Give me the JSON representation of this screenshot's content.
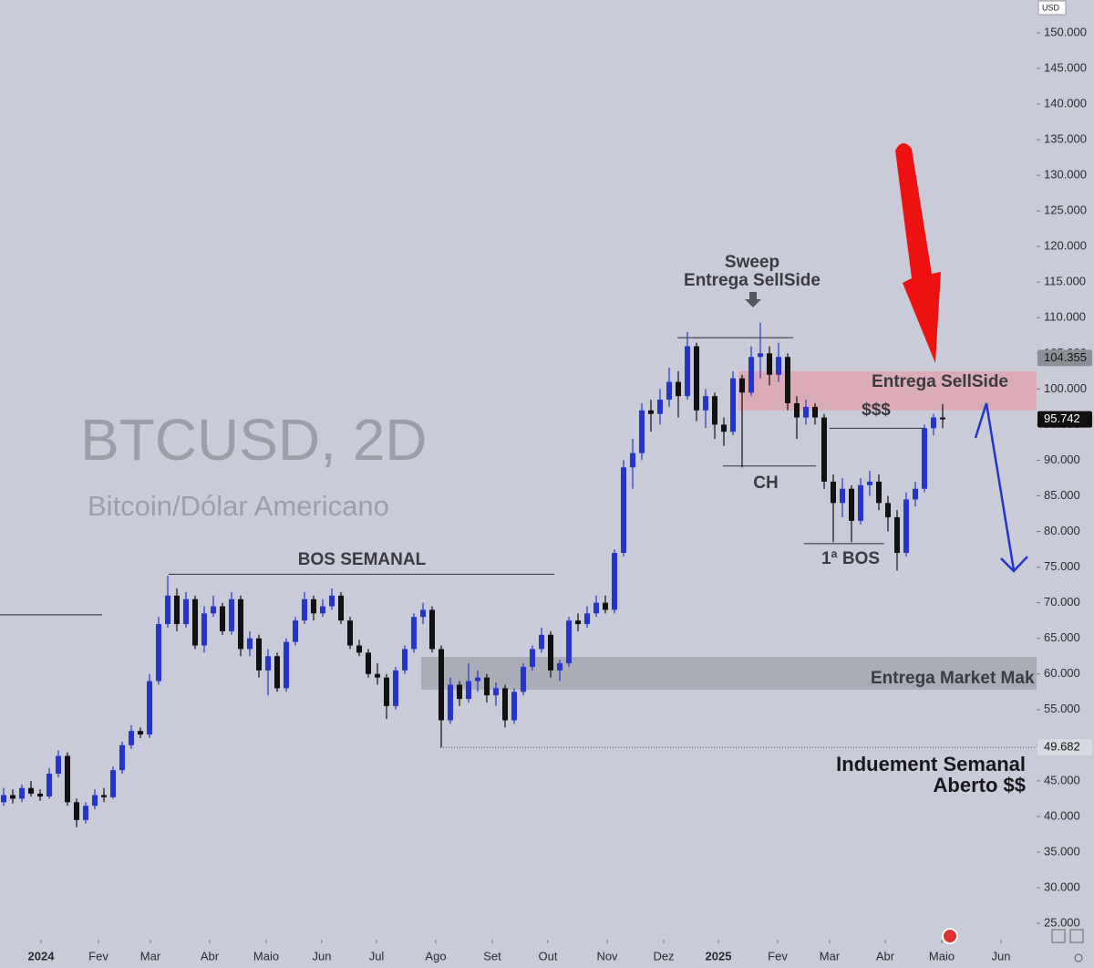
{
  "chart_data": {
    "type": "candlestick",
    "title": "BTCUSD, 2D",
    "subtitle": "Bitcoin/Dólar Americano",
    "currency": "USD",
    "up_color": "#2435c8",
    "down_color": "#111111",
    "xlim": [
      -0.4,
      113.3
    ],
    "ylim": [
      22700,
      154600
    ],
    "xticks": [
      {
        "value": 4.1,
        "label": "2024"
      },
      {
        "value": 10.4,
        "label": "Fev"
      },
      {
        "value": 16.1,
        "label": "Mar"
      },
      {
        "value": 22.6,
        "label": "Abr"
      },
      {
        "value": 28.8,
        "label": "Maio"
      },
      {
        "value": 34.9,
        "label": "Jun"
      },
      {
        "value": 40.9,
        "label": "Jul"
      },
      {
        "value": 47.4,
        "label": "Ago"
      },
      {
        "value": 53.6,
        "label": "Set"
      },
      {
        "value": 59.7,
        "label": "Out"
      },
      {
        "value": 66.2,
        "label": "Nov"
      },
      {
        "value": 72.4,
        "label": "Dez"
      },
      {
        "value": 78.4,
        "label": "2025"
      },
      {
        "value": 84.9,
        "label": "Fev"
      },
      {
        "value": 90.6,
        "label": "Mar"
      },
      {
        "value": 96.7,
        "label": "Abr"
      },
      {
        "value": 102.9,
        "label": "Maio"
      },
      {
        "value": 109.4,
        "label": "Jun"
      }
    ],
    "yticks": [
      {
        "value": 25000,
        "label": "25.000"
      },
      {
        "value": 30000,
        "label": "30.000"
      },
      {
        "value": 35000,
        "label": "35.000"
      },
      {
        "value": 40000,
        "label": "40.000"
      },
      {
        "value": 45000,
        "label": "45.000"
      },
      {
        "value": 50000,
        "label": "50.000"
      },
      {
        "value": 55000,
        "label": "55.000"
      },
      {
        "value": 60000,
        "label": "60.000"
      },
      {
        "value": 65000,
        "label": "65.000"
      },
      {
        "value": 70000,
        "label": "70.000"
      },
      {
        "value": 75000,
        "label": "75.000"
      },
      {
        "value": 80000,
        "label": "80.000"
      },
      {
        "value": 85000,
        "label": "85.000"
      },
      {
        "value": 90000,
        "label": "90.000"
      },
      {
        "value": 95000,
        "label": "95.000"
      },
      {
        "value": 100000,
        "label": "100.000"
      },
      {
        "value": 105000,
        "label": "105.000"
      },
      {
        "value": 110000,
        "label": "110.000"
      },
      {
        "value": 115000,
        "label": "115.000"
      },
      {
        "value": 120000,
        "label": "120.000"
      },
      {
        "value": 125000,
        "label": "125.000"
      },
      {
        "value": 130000,
        "label": "130.000"
      },
      {
        "value": 135000,
        "label": "135.000"
      },
      {
        "value": 140000,
        "label": "140.000"
      },
      {
        "value": 145000,
        "label": "145.000"
      },
      {
        "value": 150000,
        "label": "150.000"
      }
    ],
    "candles": [
      [
        42000,
        44000,
        41500,
        43000
      ],
      [
        43000,
        43800,
        41800,
        42500
      ],
      [
        42500,
        44500,
        42000,
        44000
      ],
      [
        44000,
        45000,
        42800,
        43200
      ],
      [
        43200,
        43800,
        42200,
        42800
      ],
      [
        42800,
        46800,
        42500,
        46000
      ],
      [
        46000,
        49300,
        45500,
        48500
      ],
      [
        48500,
        49000,
        41500,
        42000
      ],
      [
        42000,
        42500,
        38500,
        39500
      ],
      [
        39500,
        42000,
        39000,
        41500
      ],
      [
        41500,
        43800,
        41000,
        43000
      ],
      [
        43000,
        44000,
        42000,
        42700
      ],
      [
        42700,
        47000,
        42500,
        46500
      ],
      [
        46500,
        50500,
        46000,
        50000
      ],
      [
        50000,
        52800,
        49500,
        52000
      ],
      [
        52000,
        52500,
        51000,
        51500
      ],
      [
        51500,
        60000,
        51000,
        59000
      ],
      [
        59000,
        68000,
        58500,
        67000
      ],
      [
        67000,
        73800,
        66500,
        71000
      ],
      [
        71000,
        72000,
        66000,
        67000
      ],
      [
        67000,
        71500,
        66500,
        70500
      ],
      [
        70500,
        71000,
        63500,
        64000
      ],
      [
        64000,
        69500,
        63000,
        68500
      ],
      [
        68500,
        71000,
        68000,
        69500
      ],
      [
        69500,
        70000,
        65500,
        66000
      ],
      [
        66000,
        71500,
        65500,
        70500
      ],
      [
        70500,
        71000,
        62500,
        63500
      ],
      [
        63500,
        66000,
        62500,
        65000
      ],
      [
        65000,
        65500,
        59500,
        60500
      ],
      [
        60500,
        63500,
        57000,
        62500
      ],
      [
        62500,
        63000,
        57500,
        58000
      ],
      [
        58000,
        65000,
        57500,
        64500
      ],
      [
        64500,
        68000,
        64000,
        67500
      ],
      [
        67500,
        71500,
        67000,
        70500
      ],
      [
        70500,
        71000,
        67500,
        68500
      ],
      [
        68500,
        70500,
        68000,
        69500
      ],
      [
        69500,
        72000,
        69000,
        71000
      ],
      [
        71000,
        71500,
        67000,
        67500
      ],
      [
        67500,
        68000,
        63500,
        64000
      ],
      [
        64000,
        64800,
        62500,
        63000
      ],
      [
        63000,
        63500,
        59500,
        60000
      ],
      [
        60000,
        61500,
        58500,
        59500
      ],
      [
        59500,
        60000,
        53700,
        55500
      ],
      [
        55500,
        61000,
        55000,
        60500
      ],
      [
        60500,
        64000,
        60000,
        63500
      ],
      [
        63500,
        68500,
        63000,
        68000
      ],
      [
        68000,
        70000,
        67000,
        69000
      ],
      [
        69000,
        69500,
        63000,
        63500
      ],
      [
        63500,
        64000,
        49682,
        53500
      ],
      [
        53500,
        59500,
        53000,
        58500
      ],
      [
        58500,
        59000,
        55500,
        56500
      ],
      [
        56500,
        61500,
        56000,
        59000
      ],
      [
        59000,
        60500,
        57500,
        59500
      ],
      [
        59500,
        60000,
        56000,
        57000
      ],
      [
        57000,
        58800,
        55500,
        58000
      ],
      [
        58000,
        58500,
        52500,
        53500
      ],
      [
        53500,
        58000,
        53000,
        57500
      ],
      [
        57500,
        61500,
        57000,
        61000
      ],
      [
        61000,
        64000,
        60500,
        63500
      ],
      [
        63500,
        66500,
        63000,
        65500
      ],
      [
        65500,
        66000,
        59500,
        60500
      ],
      [
        60500,
        62000,
        59000,
        61500
      ],
      [
        61500,
        68000,
        61000,
        67500
      ],
      [
        67500,
        68500,
        66000,
        67000
      ],
      [
        67000,
        69500,
        66500,
        68500
      ],
      [
        68500,
        71000,
        68000,
        70000
      ],
      [
        70000,
        71000,
        68500,
        69000
      ],
      [
        69000,
        77500,
        68500,
        77000
      ],
      [
        77000,
        90000,
        76500,
        89000
      ],
      [
        89000,
        93000,
        86000,
        91000
      ],
      [
        91000,
        98000,
        90000,
        97000
      ],
      [
        97000,
        98500,
        94000,
        96500
      ],
      [
        96500,
        100000,
        95000,
        98500
      ],
      [
        98500,
        103000,
        97500,
        101000
      ],
      [
        101000,
        102500,
        96000,
        99000
      ],
      [
        99000,
        108000,
        98500,
        106000
      ],
      [
        106000,
        106500,
        95500,
        97000
      ],
      [
        97000,
        100000,
        94500,
        99000
      ],
      [
        99000,
        99500,
        93000,
        95000
      ],
      [
        95000,
        96000,
        92000,
        94000
      ],
      [
        94000,
        102500,
        93500,
        101500
      ],
      [
        101500,
        102000,
        89000,
        99500
      ],
      [
        99500,
        106000,
        99000,
        104500
      ],
      [
        104500,
        109300,
        101500,
        105000
      ],
      [
        105000,
        106000,
        100500,
        102000
      ],
      [
        102000,
        106500,
        101000,
        104500
      ],
      [
        104500,
        105000,
        97000,
        98000
      ],
      [
        98000,
        99000,
        93000,
        96000
      ],
      [
        96000,
        98500,
        95000,
        97500
      ],
      [
        97500,
        98000,
        95000,
        96000
      ],
      [
        96000,
        96500,
        86000,
        87000
      ],
      [
        87000,
        88000,
        78500,
        84000
      ],
      [
        84000,
        87500,
        82000,
        86000
      ],
      [
        86000,
        86500,
        78500,
        81500
      ],
      [
        81500,
        87500,
        81000,
        86500
      ],
      [
        86500,
        88500,
        85000,
        87000
      ],
      [
        87000,
        88000,
        83000,
        84000
      ],
      [
        84000,
        85000,
        80000,
        82000
      ],
      [
        82000,
        83000,
        74500,
        77000
      ],
      [
        77000,
        85500,
        76500,
        84500
      ],
      [
        84500,
        87000,
        83500,
        86000
      ],
      [
        86000,
        95000,
        85500,
        94500
      ],
      [
        94500,
        96500,
        93500,
        96000
      ],
      [
        96000,
        97900,
        94500,
        95742
      ]
    ],
    "levels": [
      {
        "value": 74000,
        "from": 18.1,
        "to": 60.4
      },
      {
        "value": 68300,
        "from": -0.4,
        "to": 10.8
      },
      {
        "value": 107200,
        "from": 73.9,
        "to": 86.6
      },
      {
        "value": 89200,
        "from": 78.9,
        "to": 89.1
      },
      {
        "value": 78300,
        "from": 87.8,
        "to": 96.6
      },
      {
        "value": 94500,
        "from": 90.6,
        "to": 101.1
      }
    ],
    "zones": [
      {
        "label": "Entrega SellSide",
        "low": 97000,
        "high": 102500,
        "from": 80.6,
        "color": "rgba(232,150,162,0.6)"
      },
      {
        "label": "Entrega Market Mak",
        "low": 57800,
        "high": 62400,
        "from": 45.8,
        "color": "rgba(150,152,160,0.6)"
      }
    ],
    "price_labels": [
      {
        "value": 104355,
        "label": "104.355",
        "bg": "#8d8f96",
        "fg": "#111111"
      },
      {
        "value": 95742,
        "label": "95.742",
        "bg": "#111111",
        "fg": "#ffffff"
      },
      {
        "value": 49682,
        "label": "49.682",
        "bg": "#d8dae2",
        "fg": "#111111",
        "line_from": 47.9
      }
    ],
    "annotations": {
      "bos_semanal": "BOS SEMANAL",
      "sweep": [
        "Sweep",
        "Entrega SellSide"
      ],
      "ch": "CH",
      "first_bos": "1ª BOS",
      "liquidity": "$$$",
      "inducement": [
        "Induement Semanal",
        "Aberto $$"
      ]
    }
  }
}
